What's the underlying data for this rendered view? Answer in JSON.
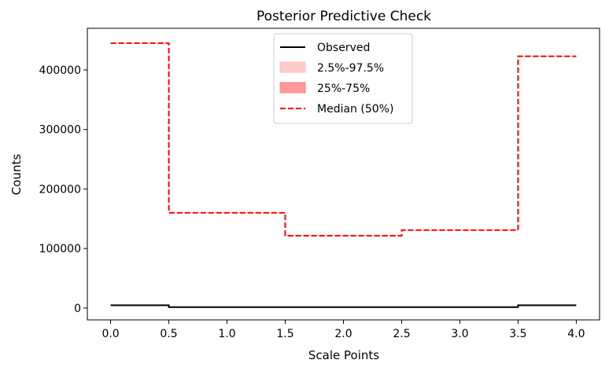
{
  "chart_data": {
    "type": "line",
    "title": "Posterior Predictive Check",
    "xlabel": "Scale Points",
    "ylabel": "Counts",
    "xlim": [
      -0.2,
      4.2
    ],
    "ylim": [
      -20000,
      470000
    ],
    "x_ticks": [
      0.0,
      0.5,
      1.0,
      1.5,
      2.0,
      2.5,
      3.0,
      3.5,
      4.0
    ],
    "x_tick_labels": [
      "0.0",
      "0.5",
      "1.0",
      "1.5",
      "2.0",
      "2.5",
      "3.0",
      "3.5",
      "4.0"
    ],
    "y_ticks": [
      0,
      100000,
      200000,
      300000,
      400000
    ],
    "y_tick_labels": [
      "0",
      "100000",
      "200000",
      "300000",
      "400000"
    ],
    "grid": false,
    "legend_position": "top-center",
    "step_edges": [
      0.0,
      0.5,
      1.5,
      2.5,
      3.5,
      4.0
    ],
    "series": [
      {
        "name": "Observed",
        "style": "solid",
        "color": "#000000",
        "values": [
          4500,
          1500,
          1500,
          1500,
          4500
        ]
      },
      {
        "name": "2.5%-97.5%",
        "style": "band",
        "color": "#ffbfbf",
        "lower": [
          444500,
          159500,
          121000,
          130500,
          422500
        ],
        "upper": [
          445500,
          160500,
          122000,
          131500,
          423500
        ]
      },
      {
        "name": "25%-75%",
        "style": "band",
        "color": "#ff8080",
        "lower": [
          444800,
          159800,
          121300,
          130800,
          422800
        ],
        "upper": [
          445200,
          160200,
          121700,
          131200,
          423200
        ]
      },
      {
        "name": "Median (50%)",
        "style": "dashed",
        "color": "#ff0000",
        "values": [
          445000,
          160000,
          121500,
          131000,
          423000
        ]
      }
    ]
  }
}
